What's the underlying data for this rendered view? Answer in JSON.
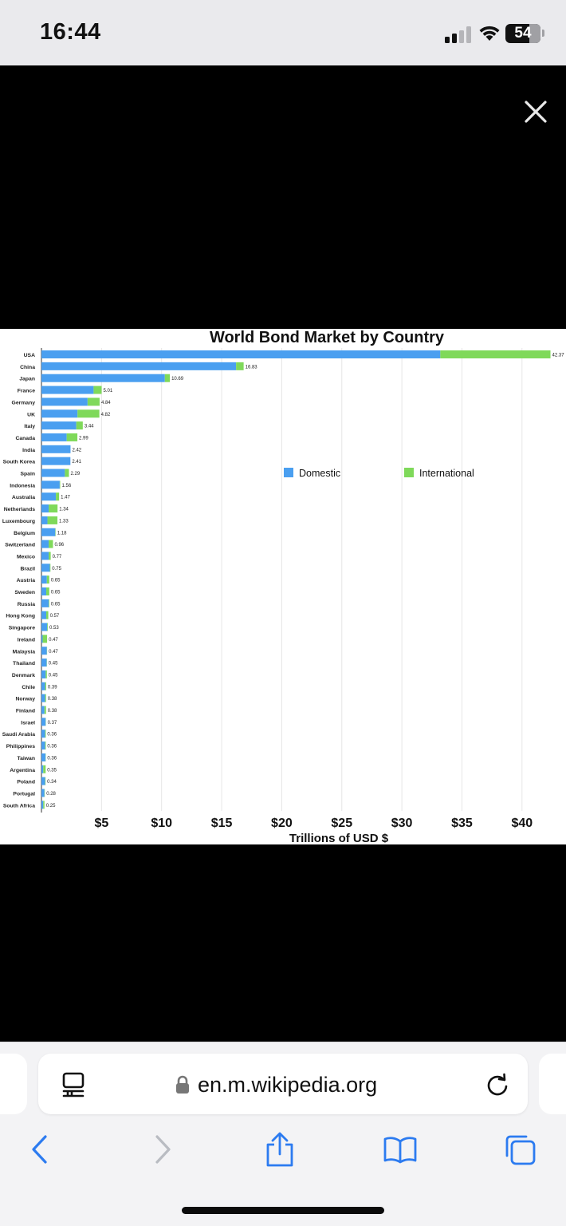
{
  "status_bar": {
    "time": "16:44",
    "battery": "54"
  },
  "browser": {
    "url": "en.m.wikipedia.org"
  },
  "chart_data": {
    "type": "bar",
    "stacked": true,
    "orientation": "horizontal",
    "title": "World Bond Market by Country",
    "xlabel": "Trillions of USD $",
    "ylabel": "",
    "xlim": [
      0,
      43
    ],
    "xticks": [
      5,
      10,
      15,
      20,
      25,
      30,
      35,
      40
    ],
    "xtick_labels": [
      "$5",
      "$10",
      "$15",
      "$20",
      "$25",
      "$30",
      "$35",
      "$40"
    ],
    "grid": true,
    "legend_position": "middle-right",
    "colors": {
      "Domestic": "#4a9ff0",
      "International": "#7fd95a"
    },
    "categories": [
      "USA",
      "China",
      "Japan",
      "France",
      "Germany",
      "UK",
      "Italy",
      "Canada",
      "India",
      "South Korea",
      "Spain",
      "Indonesia",
      "Australia",
      "Netherlands",
      "Luxembourg",
      "Belgium",
      "Switzerland",
      "Mexico",
      "Brazil",
      "Austria",
      "Sweden",
      "Russia",
      "Hong Kong",
      "Singapore",
      "Ireland",
      "Malaysia",
      "Thailand",
      "Denmark",
      "Chile",
      "Norway",
      "Finland",
      "Israel",
      "Saudi Arabia",
      "Philippines",
      "Taiwan",
      "Argentina",
      "Poland",
      "Portugal",
      "South Africa"
    ],
    "totals_labels": [
      "42.37",
      "16.83",
      "10.69",
      "5.01",
      "4.84",
      "4.82",
      "3.44",
      "2.99",
      "2.42",
      "2.41",
      "2.29",
      "1.56",
      "1.47",
      "1.34",
      "1.33",
      "1.18",
      "0.96",
      "0.77",
      "0.75",
      "0.65",
      "0.65",
      "0.65",
      "0.57",
      "0.53",
      "0.47",
      "0.47",
      "0.45",
      "0.45",
      "0.39",
      "0.38",
      "0.38",
      "0.37",
      "0.36",
      "0.36",
      "0.36",
      "0.35",
      "0.34",
      "0.28",
      "0.25"
    ],
    "series": [
      {
        "name": "Domestic",
        "values": [
          33.2,
          16.2,
          10.27,
          4.34,
          3.84,
          3.0,
          2.9,
          2.1,
          2.42,
          2.41,
          1.95,
          1.52,
          1.2,
          0.6,
          0.5,
          1.15,
          0.6,
          0.6,
          0.7,
          0.45,
          0.4,
          0.6,
          0.4,
          0.48,
          0.1,
          0.45,
          0.43,
          0.35,
          0.3,
          0.3,
          0.25,
          0.35,
          0.3,
          0.3,
          0.34,
          0.15,
          0.3,
          0.25,
          0.15
        ]
      },
      {
        "name": "International",
        "values": [
          9.17,
          0.63,
          0.42,
          0.67,
          1.0,
          1.82,
          0.54,
          0.89,
          0.0,
          0.0,
          0.34,
          0.04,
          0.27,
          0.74,
          0.83,
          0.03,
          0.36,
          0.17,
          0.05,
          0.2,
          0.25,
          0.05,
          0.17,
          0.05,
          0.37,
          0.02,
          0.02,
          0.1,
          0.09,
          0.08,
          0.13,
          0.02,
          0.06,
          0.06,
          0.02,
          0.2,
          0.04,
          0.03,
          0.1
        ]
      }
    ]
  }
}
